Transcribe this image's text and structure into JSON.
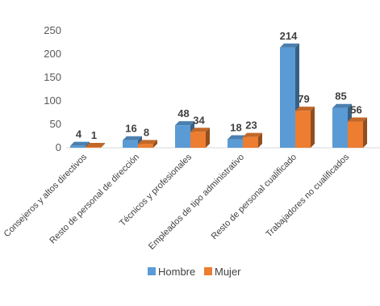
{
  "chart_data": {
    "type": "bar",
    "title": "",
    "xlabel": "",
    "ylabel": "",
    "ylim": [
      0,
      250
    ],
    "yticks": [
      0,
      50,
      100,
      150,
      200,
      250
    ],
    "yticks_text": [
      "0",
      "50",
      "100",
      "150",
      "200",
      "250"
    ],
    "grid": false,
    "legend_position": "bottom",
    "categories": [
      "Consejeros y altos directivos",
      "Resto de personal de dirección",
      "Técnicos y profesionales",
      "Empleados de tipo administrativo",
      "Resto de personal cualificado",
      "Trabajadores no cualificados"
    ],
    "series": [
      {
        "name": "Hombre",
        "color": "#5B9BD5",
        "values": [
          4,
          16,
          48,
          18,
          214,
          85
        ],
        "value_labels": [
          "4",
          "16",
          "48",
          "18",
          "214",
          "85"
        ]
      },
      {
        "name": "Mujer",
        "color": "#ED7D31",
        "values": [
          1,
          8,
          34,
          23,
          79,
          56
        ],
        "value_labels": [
          "1",
          "8",
          "34",
          "23",
          "79",
          "56"
        ]
      }
    ]
  }
}
